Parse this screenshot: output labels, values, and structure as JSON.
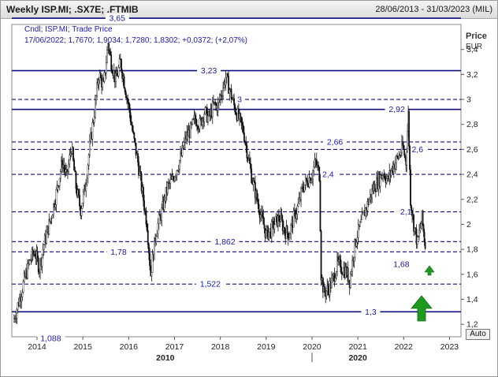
{
  "window": {
    "title": "Weekly ISP.MI; .SX7E; .FTMIB",
    "date_range": "28/06/2013 - 31/03/2023 (MIL)",
    "auto_label": "Auto"
  },
  "chart_data": {
    "type": "candlestick",
    "legend_line1": "Cndl; ISP.MI; Trade Price",
    "legend_line2": "17/06/2022; 1,7670; 1,9034; 1,7280; 1,8302; +0,0372; (+2,07%)",
    "legend_color": "#1a1aa6",
    "y_axis_title_line1": "Price",
    "y_axis_title_line2": "EUR",
    "ylim": [
      1.1,
      3.6
    ],
    "y_ticks": [
      {
        "value": 1.2,
        "label": "1,2"
      },
      {
        "value": 1.4,
        "label": "1,4"
      },
      {
        "value": 1.6,
        "label": "1,6"
      },
      {
        "value": 1.8,
        "label": "1,8"
      },
      {
        "value": 2.0,
        "label": "2"
      },
      {
        "value": 2.2,
        "label": "2,2"
      },
      {
        "value": 2.4,
        "label": "2,4"
      },
      {
        "value": 2.6,
        "label": "2,6"
      },
      {
        "value": 2.8,
        "label": "2,8"
      },
      {
        "value": 3.0,
        "label": "3"
      },
      {
        "value": 3.2,
        "label": "3,2"
      },
      {
        "value": 3.4,
        "label": "3,4"
      }
    ],
    "x_ticks": [
      {
        "value": 2014,
        "label": "2014"
      },
      {
        "value": 2015,
        "label": "2015"
      },
      {
        "value": 2016,
        "label": "2016"
      },
      {
        "value": 2017,
        "label": "2017"
      },
      {
        "value": 2018,
        "label": "2018"
      },
      {
        "value": 2019,
        "label": "2019"
      },
      {
        "value": 2020,
        "label": "2020"
      },
      {
        "value": 2021,
        "label": "2021"
      },
      {
        "value": 2022,
        "label": "2022"
      },
      {
        "value": 2023,
        "label": "2023"
      }
    ],
    "x_decades": [
      {
        "value": 2010,
        "label": "2010"
      },
      {
        "value": 2020,
        "label": "2020"
      }
    ],
    "xlim": [
      2013.45,
      2023.25
    ],
    "level_color": "#101080",
    "levels": [
      {
        "value": 3.65,
        "label": "3,65",
        "style": "solid",
        "label_at": 2015.75
      },
      {
        "value": 3.23,
        "label": "3,23",
        "style": "solid",
        "label_at": 2017.75
      },
      {
        "value": 3.0,
        "label": "3",
        "style": "dashed",
        "label_at": 2018.42
      },
      {
        "value": 2.92,
        "label": "2,92",
        "style": "solid",
        "label_at": 2021.85
      },
      {
        "value": 2.66,
        "label": "2,66",
        "style": "dashed",
        "label_at": 2020.5
      },
      {
        "value": 2.6,
        "label": "2,6",
        "style": "dashed",
        "label_at": 2022.3
      },
      {
        "value": 2.4,
        "label": "2,4",
        "style": "dashed",
        "label_at": 2020.35
      },
      {
        "value": 2.1,
        "label": "2,1",
        "style": "dashed",
        "label_at": 2022.05
      },
      {
        "value": 1.862,
        "label": "1,862",
        "style": "dashed",
        "label_at": 2018.1
      },
      {
        "value": 1.78,
        "label": "1,78",
        "style": "dashed",
        "label_at": 2015.78
      },
      {
        "value": 1.68,
        "label": "1,68",
        "style": "none",
        "label_at": 2021.95
      },
      {
        "value": 1.522,
        "label": "1,522",
        "style": "dashed",
        "label_at": 2017.78
      },
      {
        "value": 1.3,
        "label": "1,3",
        "style": "solid",
        "label_at": 2021.28
      },
      {
        "value": 1.088,
        "label": "1,088",
        "style": "none",
        "label_at": 2014.3
      }
    ],
    "series": [
      {
        "weekly_closes": [
          [
            2013.48,
            1.22
          ],
          [
            2013.6,
            1.38
          ],
          [
            2013.72,
            1.55
          ],
          [
            2013.85,
            1.72
          ],
          [
            2013.95,
            1.78
          ],
          [
            2014.05,
            1.65
          ],
          [
            2014.15,
            1.84
          ],
          [
            2014.3,
            2.05
          ],
          [
            2014.42,
            2.25
          ],
          [
            2014.55,
            2.5
          ],
          [
            2014.65,
            2.38
          ],
          [
            2014.75,
            2.62
          ],
          [
            2014.85,
            2.3
          ],
          [
            2014.95,
            2.12
          ],
          [
            2015.05,
            2.3
          ],
          [
            2015.15,
            2.62
          ],
          [
            2015.25,
            2.9
          ],
          [
            2015.35,
            3.2
          ],
          [
            2015.45,
            3.1
          ],
          [
            2015.55,
            3.45
          ],
          [
            2015.62,
            3.3
          ],
          [
            2015.72,
            3.15
          ],
          [
            2015.82,
            3.3
          ],
          [
            2015.92,
            3.1
          ],
          [
            2016.02,
            2.9
          ],
          [
            2016.1,
            2.7
          ],
          [
            2016.2,
            2.5
          ],
          [
            2016.3,
            2.25
          ],
          [
            2016.4,
            2.0
          ],
          [
            2016.48,
            1.6
          ],
          [
            2016.6,
            1.95
          ],
          [
            2016.72,
            2.1
          ],
          [
            2016.85,
            2.3
          ],
          [
            2016.95,
            2.35
          ],
          [
            2017.05,
            2.45
          ],
          [
            2017.15,
            2.55
          ],
          [
            2017.25,
            2.7
          ],
          [
            2017.35,
            2.75
          ],
          [
            2017.45,
            2.85
          ],
          [
            2017.55,
            2.8
          ],
          [
            2017.65,
            2.9
          ],
          [
            2017.75,
            2.85
          ],
          [
            2017.85,
            2.95
          ],
          [
            2017.95,
            2.95
          ],
          [
            2018.02,
            3.05
          ],
          [
            2018.12,
            3.18
          ],
          [
            2018.2,
            3.08
          ],
          [
            2018.3,
            2.95
          ],
          [
            2018.4,
            2.85
          ],
          [
            2018.5,
            2.75
          ],
          [
            2018.6,
            2.55
          ],
          [
            2018.7,
            2.35
          ],
          [
            2018.8,
            2.2
          ],
          [
            2018.9,
            2.05
          ],
          [
            2019.0,
            1.92
          ],
          [
            2019.1,
            1.95
          ],
          [
            2019.2,
            2.02
          ],
          [
            2019.3,
            2.05
          ],
          [
            2019.4,
            1.95
          ],
          [
            2019.5,
            1.92
          ],
          [
            2019.6,
            2.05
          ],
          [
            2019.7,
            2.15
          ],
          [
            2019.8,
            2.3
          ],
          [
            2019.9,
            2.35
          ],
          [
            2020.0,
            2.4
          ],
          [
            2020.08,
            2.5
          ],
          [
            2020.16,
            2.4
          ],
          [
            2020.2,
            1.6
          ],
          [
            2020.26,
            1.45
          ],
          [
            2020.35,
            1.48
          ],
          [
            2020.45,
            1.55
          ],
          [
            2020.55,
            1.68
          ],
          [
            2020.65,
            1.65
          ],
          [
            2020.75,
            1.62
          ],
          [
            2020.82,
            1.55
          ],
          [
            2020.9,
            1.75
          ],
          [
            2020.97,
            1.9
          ],
          [
            2021.05,
            1.98
          ],
          [
            2021.15,
            2.1
          ],
          [
            2021.25,
            2.2
          ],
          [
            2021.35,
            2.3
          ],
          [
            2021.45,
            2.35
          ],
          [
            2021.55,
            2.42
          ],
          [
            2021.65,
            2.35
          ],
          [
            2021.75,
            2.45
          ],
          [
            2021.82,
            2.5
          ],
          [
            2021.9,
            2.55
          ],
          [
            2021.98,
            2.62
          ],
          [
            2022.05,
            2.5
          ],
          [
            2022.1,
            2.88
          ],
          [
            2022.15,
            2.2
          ],
          [
            2022.22,
            2.0
          ],
          [
            2022.3,
            1.85
          ],
          [
            2022.4,
            2.05
          ],
          [
            2022.47,
            1.83
          ]
        ]
      }
    ]
  }
}
